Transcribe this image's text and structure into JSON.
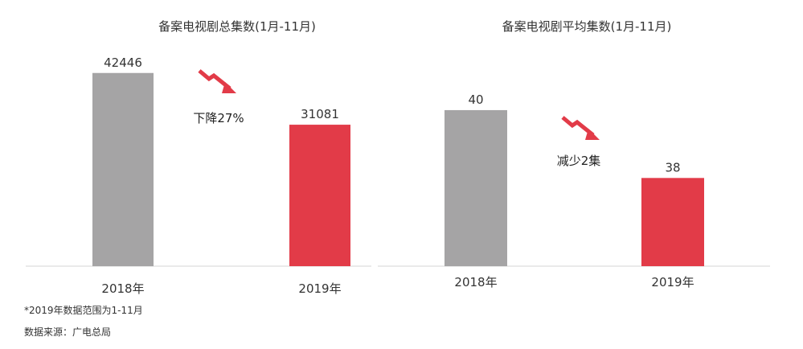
{
  "colors": {
    "bar_2018": "#a5a4a5",
    "bar_2019": "#e23b48",
    "arrow": "#e23b48",
    "axis": "#d6d6d6"
  },
  "chart_data": [
    {
      "type": "bar",
      "title": "备案电视剧总集数(1月-11月)",
      "categories": [
        "2018年",
        "2019年"
      ],
      "values": [
        42446,
        31081
      ],
      "value_labels": [
        "42446",
        "31081"
      ],
      "ylim": [
        0,
        50000
      ],
      "annotation": "下降27%",
      "annotation_icon": "down-trend-arrow-icon"
    },
    {
      "type": "bar",
      "title": "备案电视剧平均集数(1月-11月)",
      "categories": [
        "2018年",
        "2019年"
      ],
      "values": [
        40,
        38
      ],
      "value_labels": [
        "40",
        "38"
      ],
      "ylim": [
        35.4,
        41.8
      ],
      "annotation": "减少2集",
      "annotation_icon": "down-trend-arrow-icon"
    }
  ],
  "footnotes": {
    "range_note": "*2019年数据范围为1-11月",
    "source": "数据来源：广电总局"
  }
}
